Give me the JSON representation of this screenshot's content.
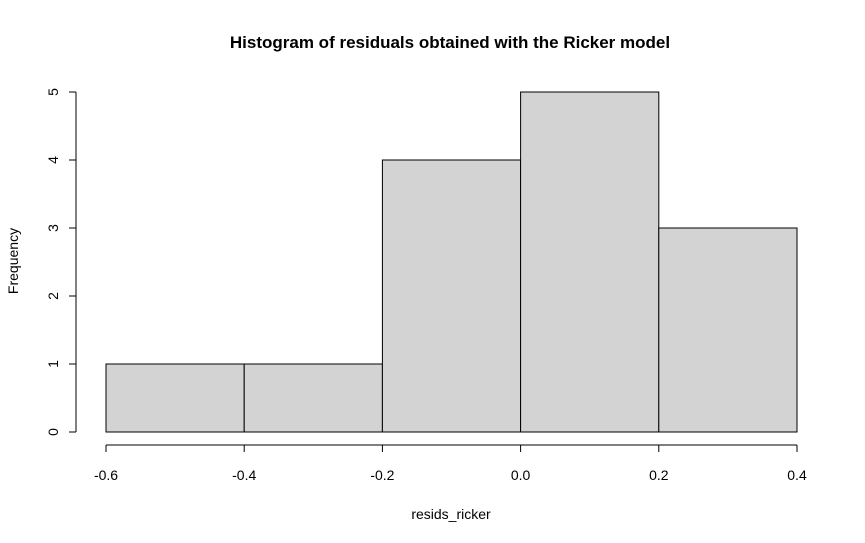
{
  "chart_data": {
    "type": "bar",
    "title": "Histogram of residuals obtained with the Ricker model",
    "xlabel": "resids_ricker",
    "ylabel": "Frequency",
    "bins": [
      {
        "from": -0.6,
        "to": -0.4,
        "count": 1
      },
      {
        "from": -0.4,
        "to": -0.2,
        "count": 1
      },
      {
        "from": -0.2,
        "to": 0.0,
        "count": 4
      },
      {
        "from": 0.0,
        "to": 0.2,
        "count": 5
      },
      {
        "from": 0.2,
        "to": 0.4,
        "count": 3
      }
    ],
    "xlim": [
      -0.6,
      0.4
    ],
    "ylim": [
      0,
      5
    ],
    "x_ticks": [
      -0.6,
      -0.4,
      -0.2,
      0.0,
      0.2,
      0.4
    ],
    "x_tick_labels": [
      "-0.6",
      "-0.4",
      "-0.2",
      "0.0",
      "0.2",
      "0.4"
    ],
    "y_ticks": [
      0,
      1,
      2,
      3,
      4,
      5
    ],
    "y_tick_labels": [
      "0",
      "1",
      "2",
      "3",
      "4",
      "5"
    ],
    "bar_fill": "#d3d3d3",
    "bar_stroke": "#000000",
    "grid": false
  }
}
